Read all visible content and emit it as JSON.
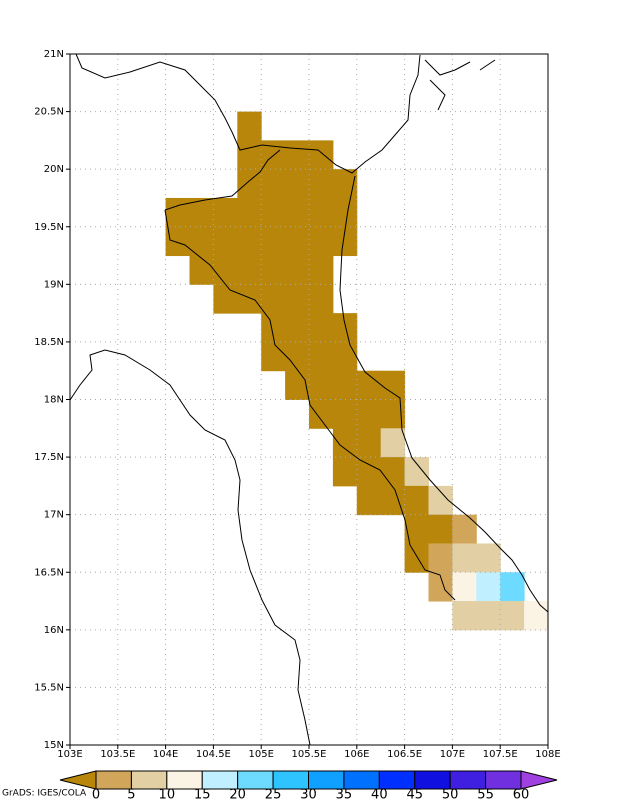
{
  "chart_data": {
    "type": "grid-map",
    "xlim": [
      103,
      108
    ],
    "ylim": [
      15,
      21
    ],
    "xticks": [
      {
        "value": 103,
        "label": "103E"
      },
      {
        "value": 103.5,
        "label": "103.5E"
      },
      {
        "value": 104,
        "label": "104E"
      },
      {
        "value": 104.5,
        "label": "104.5E"
      },
      {
        "value": 105,
        "label": "105E"
      },
      {
        "value": 105.5,
        "label": "105.5E"
      },
      {
        "value": 106,
        "label": "106E"
      },
      {
        "value": 106.5,
        "label": "106.5E"
      },
      {
        "value": 107,
        "label": "107E"
      },
      {
        "value": 107.5,
        "label": "107.5E"
      },
      {
        "value": 108,
        "label": "108E"
      }
    ],
    "yticks": [
      {
        "value": 15,
        "label": "15N"
      },
      {
        "value": 15.5,
        "label": "15.5N"
      },
      {
        "value": 16,
        "label": "16N"
      },
      {
        "value": 16.5,
        "label": "16.5N"
      },
      {
        "value": 17,
        "label": "17N"
      },
      {
        "value": 17.5,
        "label": "17.5N"
      },
      {
        "value": 18,
        "label": "18N"
      },
      {
        "value": 18.5,
        "label": "18.5N"
      },
      {
        "value": 19,
        "label": "19N"
      },
      {
        "value": 19.5,
        "label": "19.5N"
      },
      {
        "value": 20,
        "label": "20N"
      },
      {
        "value": 20.5,
        "label": "20.5N"
      },
      {
        "value": 21,
        "label": "21N"
      }
    ],
    "grid": true,
    "cell_size": 0.25,
    "levels": [
      0,
      5,
      10,
      15,
      20,
      25,
      30,
      35,
      40,
      45,
      50,
      55,
      60
    ],
    "colors": [
      "#b8860b",
      "#d2a65a",
      "#e2d0a4",
      "#fbf3e4",
      "#c0f0ff",
      "#6cdbff",
      "#2ec4ff",
      "#10a0ff",
      "#0070ff",
      "#0030ff",
      "#1010e0",
      "#4020e0",
      "#7030e0",
      "#a040e0"
    ],
    "rows": [
      {
        "lat": 20.25,
        "lon": 104.75,
        "values": [
          -2
        ]
      },
      {
        "lat": 20.0,
        "lon": 104.75,
        "values": [
          -2,
          -2,
          -2,
          -2
        ]
      },
      {
        "lat": 19.75,
        "lon": 104.75,
        "values": [
          -2,
          -2,
          -2,
          -2,
          -2
        ]
      },
      {
        "lat": 19.5,
        "lon": 104.0,
        "values": [
          -2,
          -2,
          -2,
          -2,
          -2,
          -2,
          -2,
          -2
        ]
      },
      {
        "lat": 19.25,
        "lon": 104.0,
        "values": [
          -2,
          -2,
          -2,
          -2,
          -2,
          -2,
          -2,
          -2
        ]
      },
      {
        "lat": 19.0,
        "lon": 104.25,
        "values": [
          -2,
          -2,
          -2,
          -2,
          -2,
          -2
        ]
      },
      {
        "lat": 18.75,
        "lon": 104.5,
        "values": [
          -2,
          -2,
          -2,
          -2,
          -2
        ]
      },
      {
        "lat": 18.5,
        "lon": 105.0,
        "values": [
          -2,
          -2,
          -2,
          -2
        ]
      },
      {
        "lat": 18.25,
        "lon": 105.0,
        "values": [
          -2,
          -2,
          -2,
          -2
        ]
      },
      {
        "lat": 18.0,
        "lon": 105.25,
        "values": [
          -2,
          -2,
          -2,
          -2,
          -2
        ]
      },
      {
        "lat": 17.75,
        "lon": 105.5,
        "values": [
          -2,
          -2,
          -2,
          -2
        ]
      },
      {
        "lat": 17.5,
        "lon": 105.75,
        "values": [
          -2,
          -2,
          7.5
        ]
      },
      {
        "lat": 17.25,
        "lon": 105.75,
        "values": [
          -2,
          -2,
          -2,
          7.5
        ]
      },
      {
        "lat": 17.0,
        "lon": 106.0,
        "values": [
          -2,
          -2,
          -2,
          7.5
        ]
      },
      {
        "lat": 16.75,
        "lon": 106.5,
        "values": [
          -2,
          -2,
          2.5
        ]
      },
      {
        "lat": 16.5,
        "lon": 106.5,
        "values": [
          -2,
          2.5,
          7.5,
          7.5
        ]
      },
      {
        "lat": 16.25,
        "lon": 106.75,
        "values": [
          2.5,
          12.5,
          17.5,
          22.5
        ]
      },
      {
        "lat": 16.0,
        "lon": 107.0,
        "values": [
          7.5,
          7.5,
          7.5,
          12.5
        ]
      }
    ],
    "credit": "GrADS: IGES/COLA"
  }
}
